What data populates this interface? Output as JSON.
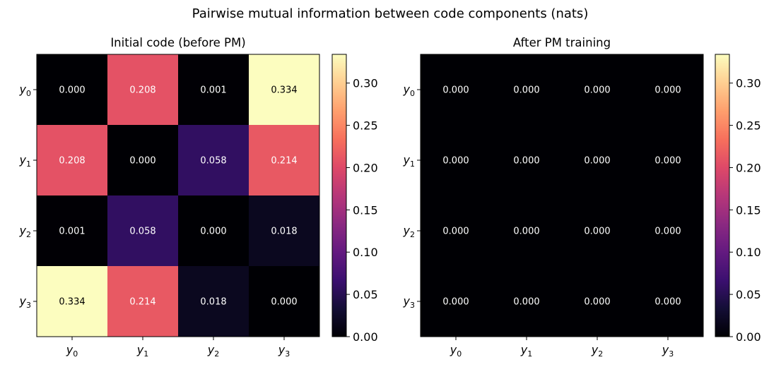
{
  "figure": {
    "title": "Pairwise mutual information between code components (nats)"
  },
  "chart_data": [
    {
      "type": "heatmap",
      "title": "Initial code (before PM)",
      "x_tick_labels": [
        [
          "y",
          "0"
        ],
        [
          "y",
          "1"
        ],
        [
          "y",
          "2"
        ],
        [
          "y",
          "3"
        ]
      ],
      "y_tick_labels": [
        [
          "y",
          "0"
        ],
        [
          "y",
          "1"
        ],
        [
          "y",
          "2"
        ],
        [
          "y",
          "3"
        ]
      ],
      "matrix": [
        [
          0.0,
          0.208,
          0.001,
          0.334
        ],
        [
          0.208,
          0.0,
          0.058,
          0.214
        ],
        [
          0.001,
          0.058,
          0.0,
          0.018
        ],
        [
          0.334,
          0.214,
          0.018,
          0.0
        ]
      ],
      "colormap": "magma",
      "vmin": 0.0,
      "vmax": 0.334,
      "colorbar_ticks": [
        0.0,
        0.05,
        0.1,
        0.15,
        0.2,
        0.25,
        0.3
      ]
    },
    {
      "type": "heatmap",
      "title": "After PM training",
      "x_tick_labels": [
        [
          "y",
          "0"
        ],
        [
          "y",
          "1"
        ],
        [
          "y",
          "2"
        ],
        [
          "y",
          "3"
        ]
      ],
      "y_tick_labels": [
        [
          "y",
          "0"
        ],
        [
          "y",
          "1"
        ],
        [
          "y",
          "2"
        ],
        [
          "y",
          "3"
        ]
      ],
      "matrix": [
        [
          0.0,
          0.0,
          0.0,
          0.0
        ],
        [
          0.0,
          0.0,
          0.0,
          0.0
        ],
        [
          0.0,
          0.0,
          0.0,
          0.0
        ],
        [
          0.0,
          0.0,
          0.0,
          0.0
        ]
      ],
      "colormap": "magma",
      "vmin": 0.0,
      "vmax": 0.334,
      "colorbar_ticks": [
        0.0,
        0.05,
        0.1,
        0.15,
        0.2,
        0.25,
        0.3
      ]
    }
  ]
}
